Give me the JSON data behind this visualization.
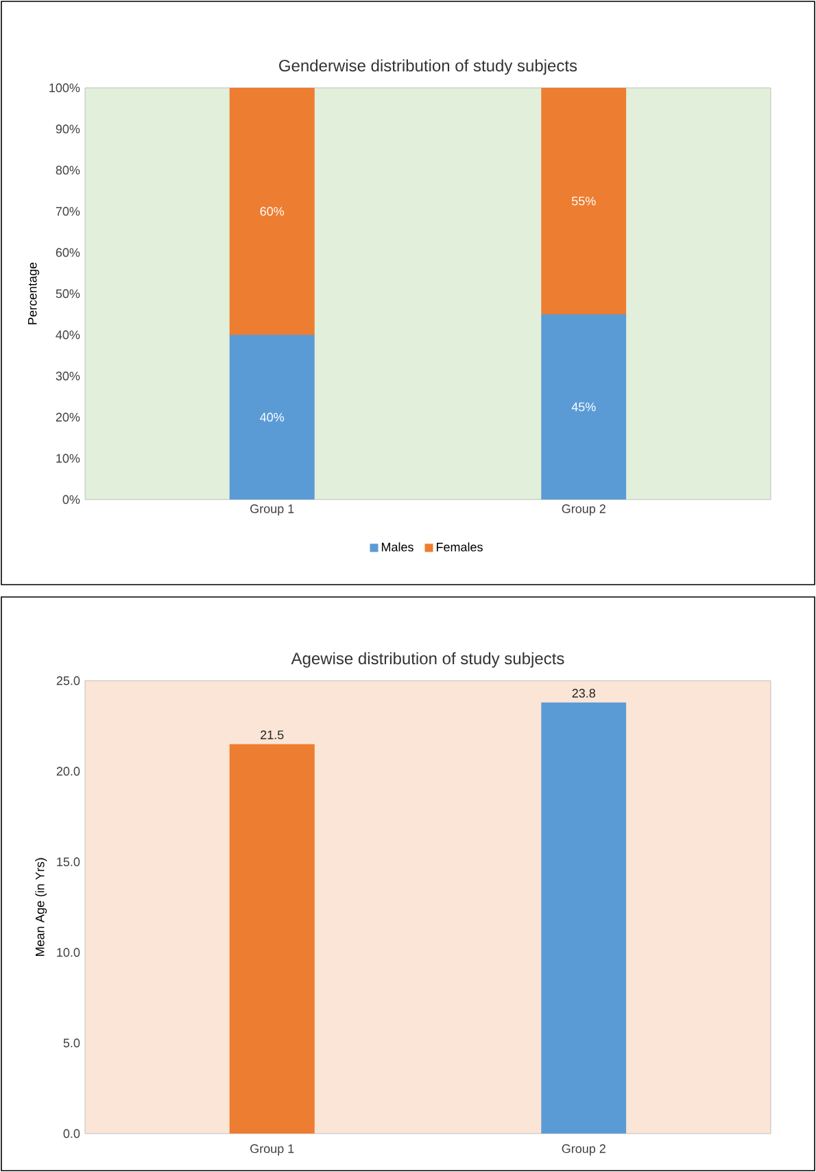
{
  "chart_data": [
    {
      "type": "bar",
      "stacked": true,
      "title": "Genderwise distribution of study subjects",
      "ylabel": "Percentage",
      "categories": [
        "Group 1",
        "Group 2"
      ],
      "series": [
        {
          "name": "Males",
          "color": "#5b9bd5",
          "values": [
            40,
            45
          ],
          "value_labels": [
            "40%",
            "45%"
          ]
        },
        {
          "name": "Females",
          "color": "#ed7d31",
          "values": [
            60,
            55
          ],
          "value_labels": [
            "60%",
            "55%"
          ]
        }
      ],
      "ylim": [
        0,
        100
      ],
      "yticks": [
        {
          "value": 0,
          "label": "0%"
        },
        {
          "value": 10,
          "label": "10%"
        },
        {
          "value": 20,
          "label": "20%"
        },
        {
          "value": 30,
          "label": "30%"
        },
        {
          "value": 40,
          "label": "40%"
        },
        {
          "value": 50,
          "label": "50%"
        },
        {
          "value": 60,
          "label": "60%"
        },
        {
          "value": 70,
          "label": "70%"
        },
        {
          "value": 80,
          "label": "80%"
        },
        {
          "value": 90,
          "label": "90%"
        },
        {
          "value": 100,
          "label": "100%"
        }
      ],
      "legend": "bottom"
    },
    {
      "type": "bar",
      "title": "Agewise distribution of study subjects",
      "ylabel": "Mean Age (in Yrs)",
      "categories": [
        "Group 1",
        "Group 2"
      ],
      "values": [
        21.5,
        23.8
      ],
      "colors": [
        "#ed7d31",
        "#5b9bd5"
      ],
      "data_labels": true,
      "ylim": [
        0,
        25
      ],
      "yticks": [
        {
          "value": 0,
          "label": "0.0"
        },
        {
          "value": 5,
          "label": "5.0"
        },
        {
          "value": 10,
          "label": "10.0"
        },
        {
          "value": 15,
          "label": "15.0"
        },
        {
          "value": 20,
          "label": "20.0"
        },
        {
          "value": 25,
          "label": "25.0"
        }
      ]
    }
  ]
}
